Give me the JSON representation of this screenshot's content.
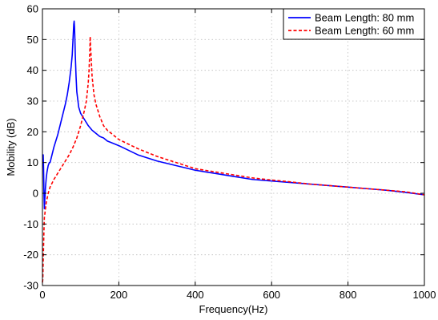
{
  "chart_data": {
    "type": "line",
    "xlabel": "Frequency(Hz)",
    "ylabel": "Mobility (dB)",
    "xlim": [
      0,
      1000
    ],
    "ylim": [
      -30,
      60
    ],
    "xticks": [
      0,
      200,
      400,
      600,
      800,
      1000
    ],
    "yticks": [
      -30,
      -20,
      -10,
      0,
      10,
      20,
      30,
      40,
      50,
      60
    ],
    "grid": true,
    "legend_position": "top-right",
    "series": [
      {
        "name": "Beam Length: 80 mm",
        "color": "#0000ff",
        "style": "solid",
        "x": [
          0,
          2,
          3,
          4,
          5,
          8,
          10,
          12,
          15,
          18,
          20,
          30,
          40,
          50,
          60,
          65,
          70,
          75,
          78,
          80,
          82,
          83,
          84,
          85,
          86,
          88,
          90,
          95,
          100,
          110,
          120,
          130,
          140,
          150,
          160,
          170,
          180,
          200,
          250,
          300,
          350,
          400,
          450,
          500,
          550,
          600,
          650,
          700,
          750,
          800,
          850,
          900,
          950,
          1000
        ],
        "y": [
          12,
          12.5,
          8,
          0,
          -5,
          2,
          5,
          7,
          9,
          10,
          10,
          15,
          19,
          24,
          29,
          32,
          36,
          41,
          45,
          50,
          55,
          56,
          54,
          50,
          45,
          38,
          33,
          28,
          26,
          24,
          22,
          20.5,
          19.5,
          18.5,
          18,
          17,
          16.5,
          15.5,
          12.5,
          10.5,
          9,
          7.5,
          6.5,
          5.5,
          4.5,
          4,
          3.5,
          3,
          2.5,
          2,
          1.5,
          1,
          0.3,
          -0.5
        ]
      },
      {
        "name": "Beam Length: 60 mm",
        "color": "#ff0000",
        "style": "dashed",
        "x": [
          0,
          1,
          2,
          3,
          4,
          5,
          8,
          10,
          15,
          20,
          30,
          40,
          50,
          60,
          70,
          80,
          90,
          100,
          110,
          115,
          120,
          122,
          124,
          125,
          126,
          128,
          130,
          135,
          140,
          150,
          160,
          170,
          180,
          200,
          250,
          300,
          350,
          400,
          450,
          500,
          550,
          600,
          650,
          700,
          750,
          800,
          850,
          900,
          950,
          1000
        ],
        "y": [
          -29,
          -28,
          -22,
          -17,
          -12,
          -8,
          -5,
          -3,
          0,
          2,
          4.5,
          6.5,
          8.5,
          10.5,
          12.5,
          15,
          18,
          22,
          27,
          30,
          36,
          40,
          46,
          51,
          48,
          43,
          38,
          32,
          29,
          25,
          22,
          20.5,
          19.5,
          17.5,
          14.5,
          12,
          10,
          8,
          7,
          6,
          5,
          4.3,
          3.7,
          3,
          2.5,
          2,
          1.5,
          1,
          0.5,
          -0.5
        ]
      }
    ]
  }
}
